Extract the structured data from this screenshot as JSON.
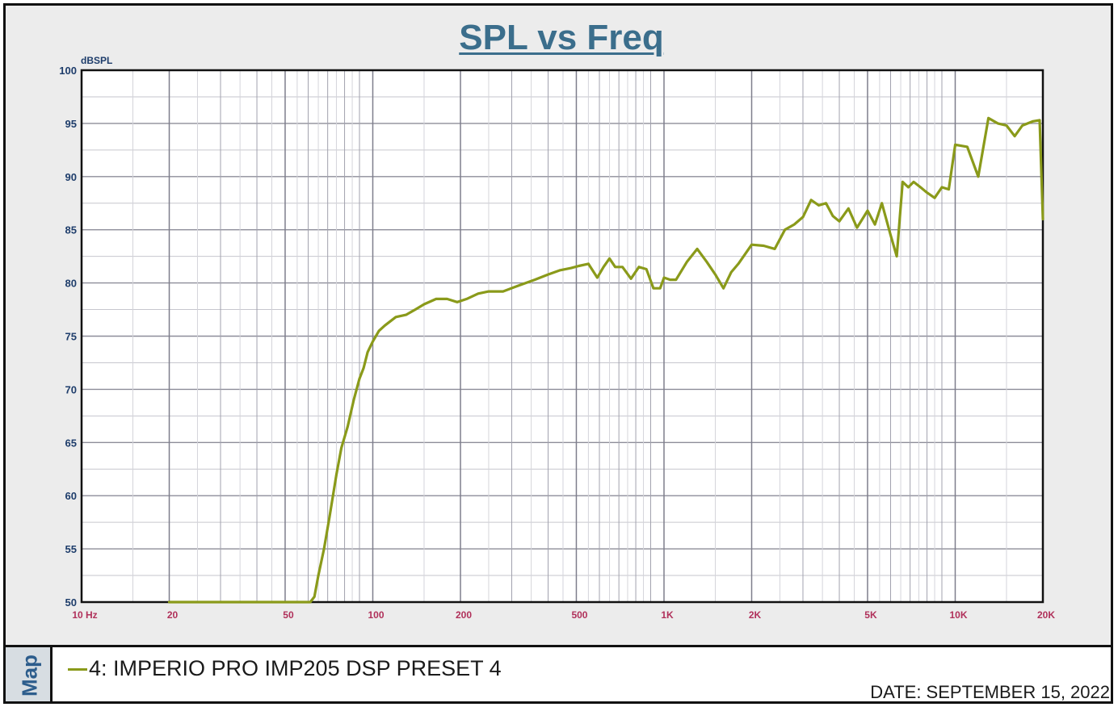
{
  "title": "SPL vs Freq",
  "legend": {
    "map_label": "Map",
    "entry": "4: IMPERIO PRO IMP205 DSP PRESET 4",
    "date": "DATE: SEPTEMBER 15, 2022"
  },
  "colors": {
    "curve": "#8a9a1a",
    "title": "#3b6e8c",
    "ytick": "#1e3d6b",
    "xtick": "#b0305a",
    "grid": "#9a9aa6",
    "plot_bg": "#ffffff"
  },
  "chart_data": {
    "type": "line",
    "title": "SPL vs Freq",
    "ylabel": "dBSPL",
    "xlabel": "",
    "xscale": "log",
    "xlim": [
      10,
      20000
    ],
    "ylim": [
      50,
      100
    ],
    "grid": true,
    "yticks": [
      50,
      55,
      60,
      65,
      70,
      75,
      80,
      85,
      90,
      95,
      100
    ],
    "xticks": [
      {
        "value": 10,
        "label": "10 Hz"
      },
      {
        "value": 20,
        "label": "20"
      },
      {
        "value": 50,
        "label": "50"
      },
      {
        "value": 100,
        "label": "100"
      },
      {
        "value": 200,
        "label": "200"
      },
      {
        "value": 500,
        "label": "500"
      },
      {
        "value": 1000,
        "label": "1K"
      },
      {
        "value": 2000,
        "label": "2K"
      },
      {
        "value": 5000,
        "label": "5K"
      },
      {
        "value": 10000,
        "label": "10K"
      },
      {
        "value": 20000,
        "label": "20K"
      }
    ],
    "series": [
      {
        "name": "4: IMPERIO PRO IMP205 DSP PRESET 4",
        "x": [
          20,
          30,
          40,
          50,
          61,
          63,
          65,
          68,
          71,
          75,
          78,
          82,
          86,
          90,
          93,
          96,
          100,
          105,
          110,
          120,
          130,
          140,
          150,
          165,
          180,
          195,
          210,
          230,
          250,
          280,
          320,
          360,
          400,
          440,
          480,
          510,
          550,
          590,
          620,
          650,
          680,
          720,
          770,
          820,
          870,
          920,
          970,
          1000,
          1050,
          1100,
          1200,
          1300,
          1400,
          1500,
          1600,
          1700,
          1800,
          2000,
          2200,
          2400,
          2600,
          2800,
          3000,
          3200,
          3400,
          3600,
          3800,
          4000,
          4300,
          4600,
          5000,
          5300,
          5600,
          6000,
          6300,
          6600,
          6900,
          7200,
          7600,
          8000,
          8500,
          9000,
          9500,
          10000,
          11000,
          12000,
          13000,
          14000,
          15000,
          16000,
          17000,
          18500,
          19500,
          20000
        ],
        "y": [
          50,
          50,
          50,
          50,
          50,
          50.5,
          52.5,
          55,
          58,
          62,
          64.5,
          66.5,
          69,
          71,
          72,
          73.5,
          74.5,
          75.5,
          76,
          76.8,
          77,
          77.5,
          78,
          78.5,
          78.5,
          78.2,
          78.5,
          79,
          79.2,
          79.2,
          79.8,
          80.3,
          80.8,
          81.2,
          81.4,
          81.6,
          81.8,
          80.5,
          81.5,
          82.3,
          81.5,
          81.5,
          80.4,
          81.5,
          81.3,
          79.5,
          79.5,
          80.5,
          80.3,
          80.3,
          82,
          83.2,
          82,
          80.8,
          79.5,
          81,
          81.8,
          83.6,
          83.5,
          83.2,
          85,
          85.5,
          86.2,
          87.8,
          87.3,
          87.5,
          86.3,
          85.8,
          87,
          85.2,
          86.8,
          85.5,
          87.5,
          84.5,
          82.5,
          89.5,
          89,
          89.5,
          89,
          88.5,
          88,
          89,
          88.8,
          93,
          92.8,
          90,
          95.5,
          95,
          94.8,
          93.8,
          94.8,
          95.2,
          95.3,
          86
        ]
      }
    ]
  }
}
